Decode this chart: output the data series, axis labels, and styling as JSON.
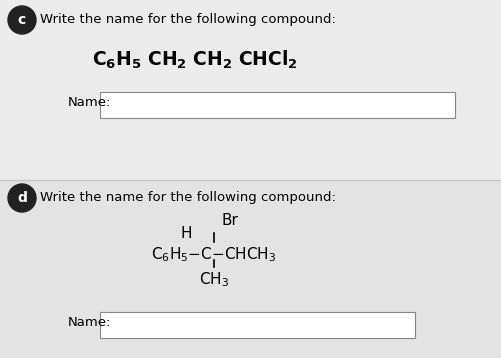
{
  "bg_top": "#ececec",
  "bg_bot": "#e6e6e6",
  "divider_color": "#c8c8c8",
  "text_color": "#000000",
  "label_bg": "#222222",
  "label_text": "#ffffff",
  "box_color": "#ffffff",
  "box_edge": "#888888",
  "c_label": "c",
  "c_instruction": "Write the name for the following compound:",
  "c_name_label": "Name:",
  "d_label": "d",
  "d_instruction": "Write the name for the following compound:",
  "d_name_label": "Name:"
}
